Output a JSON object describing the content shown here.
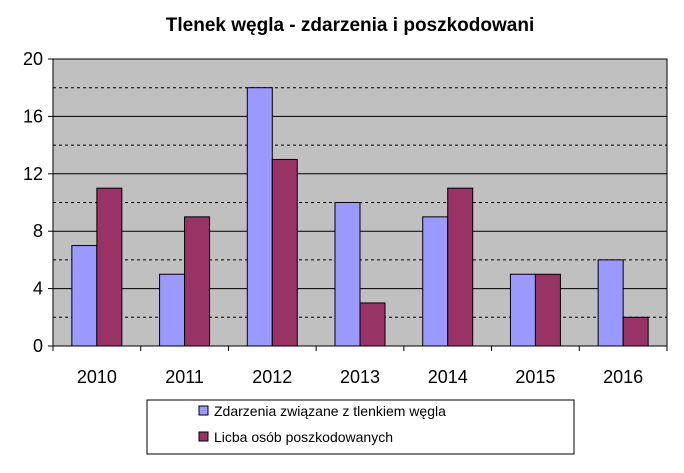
{
  "chart_data": {
    "type": "bar",
    "title": "Tlenek węgla - zdarzenia i poszkodowani",
    "categories": [
      "2010",
      "2011",
      "2012",
      "2013",
      "2014",
      "2015",
      "2016"
    ],
    "series": [
      {
        "name": "Zdarzenia związane z tlenkiem węgla",
        "values": [
          7,
          5,
          18,
          10,
          9,
          5,
          6
        ],
        "color": "#9999ff"
      },
      {
        "name": "Licba osób poszkodowanych",
        "values": [
          11,
          9,
          13,
          3,
          11,
          5,
          2
        ],
        "color": "#993366"
      }
    ],
    "ylim": [
      0,
      20
    ],
    "yticks": [
      "0",
      "4",
      "8",
      "12",
      "16",
      "20"
    ],
    "ytick_values": [
      0,
      4,
      8,
      12,
      16,
      20
    ],
    "minor_gridlines": [
      2,
      6,
      10,
      14,
      18
    ],
    "plot_background": "#c0c0c0",
    "grid": true,
    "legend_position": "bottom"
  }
}
